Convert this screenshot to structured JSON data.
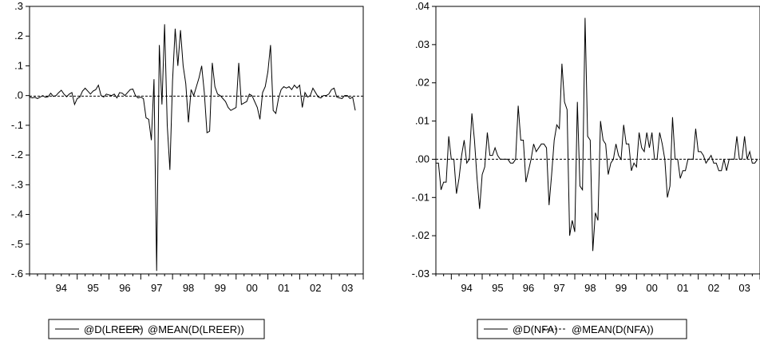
{
  "colors": {
    "series": "#000000",
    "mean": "#000000",
    "frame": "#000000",
    "background": "#ffffff"
  },
  "chart_data": [
    {
      "type": "line",
      "ylim": [
        -0.6,
        0.3
      ],
      "yticks": [
        ".3",
        ".2",
        ".1",
        ".0",
        "-.1",
        "-.2",
        "-.3",
        "-.4",
        "-.5",
        "-.6"
      ],
      "ytick_values": [
        0.3,
        0.2,
        0.1,
        0.0,
        -0.1,
        -0.2,
        -0.3,
        -0.4,
        -0.5,
        -0.6
      ],
      "xlim": [
        1993.5,
        2004.0
      ],
      "xticks": [
        "94",
        "95",
        "96",
        "97",
        "98",
        "99",
        "00",
        "01",
        "02",
        "03"
      ],
      "x_start": 1993.5,
      "x_step": 0.08333,
      "series": [
        {
          "name": "@D(LREER)",
          "style": "solid",
          "values": [
            -0.005,
            -0.008,
            -0.006,
            -0.01,
            -0.005,
            0.0,
            -0.006,
            -0.004,
            0.008,
            -0.003,
            0.0,
            0.01,
            0.018,
            0.005,
            -0.004,
            0.005,
            0.01,
            -0.03,
            -0.01,
            -0.005,
            0.015,
            0.025,
            0.015,
            0.005,
            0.015,
            0.02,
            0.035,
            0.0,
            -0.005,
            0.005,
            0.002,
            0.0,
            0.005,
            -0.008,
            0.01,
            0.008,
            0.0,
            0.01,
            0.02,
            0.022,
            0.0,
            -0.008,
            -0.005,
            -0.01,
            -0.075,
            -0.08,
            -0.15,
            0.055,
            -0.59,
            0.17,
            -0.03,
            0.24,
            -0.1,
            -0.25,
            0.05,
            0.225,
            0.1,
            0.22,
            0.1,
            0.04,
            -0.09,
            0.02,
            0.0,
            0.03,
            0.06,
            0.1,
            0.01,
            -0.125,
            -0.12,
            0.11,
            0.03,
            0.005,
            0.0,
            -0.01,
            -0.02,
            -0.04,
            -0.05,
            -0.045,
            -0.04,
            0.11,
            -0.03,
            -0.025,
            -0.02,
            0.005,
            0.0,
            -0.02,
            -0.04,
            -0.08,
            0.01,
            0.03,
            0.08,
            0.17,
            -0.05,
            -0.06,
            -0.01,
            0.02,
            0.03,
            0.025,
            0.03,
            0.02,
            0.035,
            0.025,
            0.035,
            -0.04,
            0.01,
            -0.005,
            0.0,
            0.025,
            0.01,
            -0.005,
            -0.008,
            0.0,
            0.0,
            0.005,
            0.02,
            0.025,
            -0.005,
            -0.008,
            -0.01,
            0.0,
            0.0,
            -0.01,
            -0.005,
            -0.05
          ]
        },
        {
          "name": "@MEAN(D(LREER))",
          "style": "dashed",
          "mean": -0.002
        }
      ]
    },
    {
      "type": "line",
      "ylim": [
        -0.03,
        0.04
      ],
      "yticks": [
        ".04",
        ".03",
        ".02",
        ".01",
        ".00",
        "-.01",
        "-.02",
        "-.03"
      ],
      "ytick_values": [
        0.04,
        0.03,
        0.02,
        0.01,
        0.0,
        -0.01,
        -0.02,
        -0.03
      ],
      "xlim": [
        1993.5,
        2004.0
      ],
      "xticks": [
        "94",
        "95",
        "96",
        "97",
        "98",
        "99",
        "00",
        "01",
        "02",
        "03"
      ],
      "x_start": 1993.5,
      "x_step": 0.08333,
      "series": [
        {
          "name": "@D(NFA)",
          "style": "solid",
          "values": [
            -0.001,
            -0.001,
            -0.008,
            -0.006,
            -0.006,
            0.006,
            0.0,
            0.0,
            -0.009,
            -0.005,
            0.001,
            0.005,
            -0.001,
            0.0,
            0.012,
            0.005,
            -0.005,
            -0.013,
            -0.004,
            -0.002,
            0.007,
            0.001,
            0.001,
            0.003,
            0.001,
            0.0,
            0.0,
            0.0,
            0.0,
            -0.001,
            -0.001,
            0.0,
            0.014,
            0.005,
            0.005,
            -0.006,
            -0.003,
            0.0,
            0.004,
            0.002,
            0.003,
            0.004,
            0.004,
            0.003,
            -0.012,
            -0.004,
            0.005,
            0.009,
            0.008,
            0.025,
            0.015,
            0.013,
            -0.02,
            -0.016,
            -0.019,
            0.015,
            -0.007,
            -0.008,
            0.037,
            0.006,
            0.005,
            -0.024,
            -0.014,
            -0.016,
            0.01,
            0.005,
            0.004,
            -0.004,
            -0.001,
            0.0,
            0.004,
            0.001,
            0.0,
            0.009,
            0.004,
            0.004,
            -0.003,
            -0.001,
            -0.002,
            0.007,
            0.003,
            0.002,
            0.007,
            0.003,
            0.007,
            0.0,
            0.0,
            0.007,
            0.004,
            0.0,
            -0.01,
            -0.007,
            0.011,
            0.0,
            0.0,
            -0.005,
            -0.003,
            -0.003,
            0.0,
            0.0,
            0.0,
            0.008,
            0.002,
            0.002,
            0.001,
            -0.001,
            0.0,
            0.001,
            -0.001,
            -0.001,
            -0.003,
            -0.003,
            0.0,
            -0.003,
            0.0,
            0.0,
            0.0,
            0.006,
            0.0,
            0.0,
            0.006,
            0.0,
            0.002,
            -0.001,
            -0.001,
            0.0
          ]
        },
        {
          "name": "@MEAN(D(NFA))",
          "style": "dashed",
          "mean": 0.0
        }
      ]
    }
  ]
}
